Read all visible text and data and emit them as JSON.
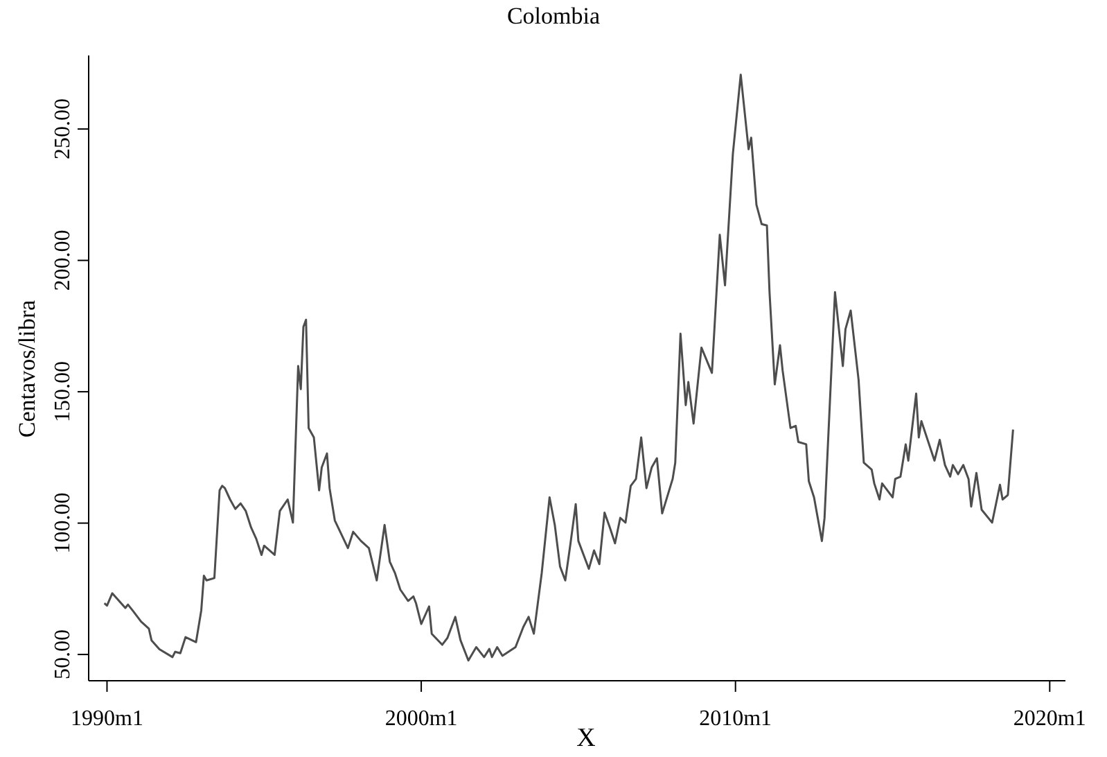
{
  "chart_data": {
    "type": "line",
    "title": "Colombia",
    "xlabel": "X",
    "ylabel": "Centavos/libra",
    "xlim": [
      "1989-06",
      "2020-07"
    ],
    "ylim": [
      40,
      278
    ],
    "xticks": [
      {
        "value": "1990-01",
        "label": "1990m1"
      },
      {
        "value": "2000-01",
        "label": "2000m1"
      },
      {
        "value": "2010-01",
        "label": "2010m1"
      },
      {
        "value": "2020-01",
        "label": "2020m1"
      }
    ],
    "yticks": [
      {
        "value": 50,
        "label": "50.00"
      },
      {
        "value": 100,
        "label": "100.00"
      },
      {
        "value": 150,
        "label": "150.00"
      },
      {
        "value": 200,
        "label": "200.00"
      },
      {
        "value": 250,
        "label": "250.00"
      }
    ],
    "grid": false,
    "legend": false,
    "marker": "none",
    "line_style": "solid",
    "series": [
      {
        "color": "#4d4d4d",
        "x": [
          "1989-12",
          "1990-01",
          "1990-03",
          "1990-08",
          "1990-09",
          "1990-11",
          "1991-02",
          "1991-05",
          "1991-06",
          "1991-09",
          "1992-02",
          "1992-03",
          "1992-05",
          "1992-07",
          "1992-11",
          "1993-01",
          "1993-02",
          "1993-03",
          "1993-06",
          "1993-08",
          "1993-09",
          "1993-10",
          "1993-12",
          "1994-02",
          "1994-04",
          "1994-06",
          "1994-08",
          "1994-10",
          "1994-12",
          "1995-01",
          "1995-05",
          "1995-07",
          "1995-10",
          "1995-12",
          "1996-02",
          "1996-03",
          "1996-04",
          "1996-05",
          "1996-06",
          "1996-08",
          "1996-10",
          "1996-11",
          "1997-01",
          "1997-02",
          "1997-04",
          "1997-09",
          "1997-11",
          "1998-02",
          "1998-05",
          "1998-08",
          "1998-11",
          "1999-01",
          "1999-03",
          "1999-05",
          "1999-08",
          "1999-10",
          "1999-11",
          "2000-01",
          "2000-04",
          "2000-05",
          "2000-09",
          "2000-11",
          "2001-02",
          "2001-04",
          "2001-07",
          "2001-10",
          "2002-01",
          "2002-03",
          "2002-04",
          "2002-06",
          "2002-08",
          "2003-01",
          "2003-04",
          "2003-06",
          "2003-08",
          "2003-11",
          "2004-02",
          "2004-04",
          "2004-06",
          "2004-08",
          "2004-10",
          "2004-12",
          "2005-01",
          "2005-05",
          "2005-07",
          "2005-09",
          "2005-11",
          "2006-01",
          "2006-03",
          "2006-05",
          "2006-07",
          "2006-09",
          "2006-11",
          "2007-01",
          "2007-03",
          "2007-05",
          "2007-07",
          "2007-09",
          "2008-01",
          "2008-02",
          "2008-04",
          "2008-06",
          "2008-07",
          "2008-09",
          "2008-12",
          "2009-04",
          "2009-07",
          "2009-09",
          "2009-12",
          "2010-03",
          "2010-06",
          "2010-07",
          "2010-09",
          "2010-11",
          "2011-01",
          "2011-02",
          "2011-04",
          "2011-06",
          "2011-07",
          "2011-10",
          "2011-12",
          "2012-01",
          "2012-04",
          "2012-05",
          "2012-07",
          "2012-10",
          "2012-11",
          "2013-03",
          "2013-06",
          "2013-07",
          "2013-09",
          "2013-12",
          "2014-02",
          "2014-05",
          "2014-06",
          "2014-08",
          "2014-09",
          "2015-01",
          "2015-02",
          "2015-04",
          "2015-06",
          "2015-07",
          "2015-10",
          "2015-11",
          "2015-12",
          "2016-05",
          "2016-07",
          "2016-09",
          "2016-11",
          "2016-12",
          "2017-02",
          "2017-04",
          "2017-06",
          "2017-07",
          "2017-09",
          "2017-11",
          "2018-03",
          "2018-06",
          "2018-07",
          "2018-09",
          "2018-11"
        ],
        "values": [
          69.5,
          68.6,
          73.3,
          67.7,
          69,
          66.5,
          62.5,
          59.8,
          55.4,
          52,
          49,
          51,
          50.5,
          56.6,
          54.7,
          66.8,
          80,
          78.2,
          79.1,
          112.5,
          114.2,
          113.3,
          109,
          105.4,
          107.5,
          104.6,
          98.4,
          94,
          87.9,
          91.4,
          87.9,
          104.6,
          109,
          100.2,
          159.8,
          151,
          174.7,
          177.4,
          136.2,
          132.6,
          112.5,
          121.2,
          126.5,
          113.3,
          101,
          90.5,
          96.7,
          93.2,
          90.5,
          78.2,
          99.3,
          85.3,
          80.9,
          74.7,
          70.4,
          72.1,
          69.5,
          61.6,
          68.3,
          57.9,
          53.7,
          56.3,
          64.3,
          55.4,
          47.7,
          52.8,
          49,
          52.1,
          49,
          52.8,
          49.5,
          52.8,
          60.5,
          64.3,
          57.9,
          80.9,
          109.8,
          99.3,
          83.5,
          78.2,
          92.3,
          107.2,
          93.2,
          82.6,
          89.6,
          84.4,
          104,
          98.4,
          92.3,
          102,
          100.2,
          114.2,
          116.8,
          132.6,
          113.3,
          121.2,
          124.7,
          103.7,
          116.8,
          123,
          172.1,
          144.9,
          153.7,
          137.9,
          166.8,
          157.2,
          209.7,
          190.5,
          240.5,
          270.7,
          242.3,
          246.7,
          221.2,
          213.8,
          213.3,
          187.9,
          152.8,
          167.7,
          158.1,
          136.2,
          137,
          130.9,
          130,
          116,
          109.8,
          93.2,
          101.9,
          187.9,
          159.8,
          173.8,
          180.9,
          154.6,
          123,
          120.4,
          115.1,
          109,
          115.1,
          109.8,
          116.8,
          117.7,
          130,
          123.8,
          149.3,
          132.6,
          138.8,
          123.8,
          131.7,
          122.1,
          117.7,
          122.1,
          118.6,
          122.1,
          116.8,
          106.3,
          119.1,
          105.1,
          100.2,
          114.6,
          109,
          110.7,
          135.6
        ]
      }
    ]
  }
}
